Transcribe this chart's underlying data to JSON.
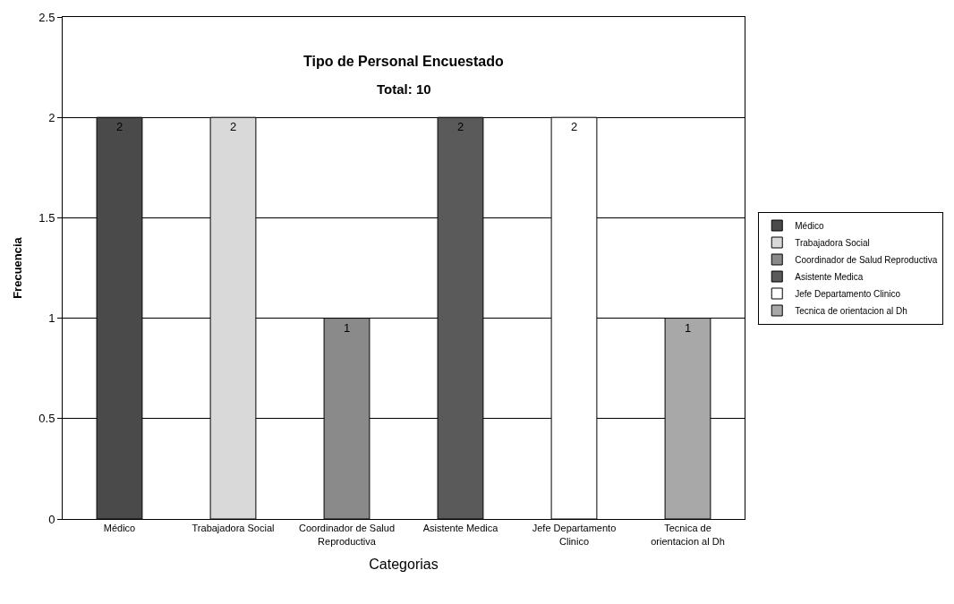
{
  "chart_data": {
    "type": "bar",
    "title": "Tipo de Personal Encuestado",
    "subtitle": "Total: 10",
    "xlabel": "Categorias",
    "ylabel": "Frecuencia",
    "categories": [
      "Médico",
      "Trabajadora Social",
      "Coordinador de Salud Reproductiva",
      "Asistente Medica",
      "Jefe Departamento Clinico",
      "Tecnica de orientacion al Dh"
    ],
    "series": [
      {
        "name": "Médico",
        "color": "#4a4a4a",
        "values": [
          2,
          null,
          null,
          null,
          null,
          null
        ]
      },
      {
        "name": "Trabajadora Social",
        "color": "#d9d9d9",
        "values": [
          null,
          2,
          null,
          null,
          null,
          null
        ]
      },
      {
        "name": "Coordinador de Salud Reproductiva",
        "color": "#8a8a8a",
        "values": [
          null,
          null,
          1,
          null,
          null,
          null
        ]
      },
      {
        "name": "Asistente Medica",
        "color": "#5a5a5a",
        "values": [
          null,
          null,
          null,
          2,
          null,
          null
        ]
      },
      {
        "name": "Jefe Departamento Clinico",
        "color": "#ffffff",
        "values": [
          null,
          null,
          null,
          null,
          2,
          null
        ]
      },
      {
        "name": "Tecnica de orientacion al Dh",
        "color": "#a8a8a8",
        "values": [
          null,
          null,
          null,
          null,
          null,
          1
        ]
      }
    ],
    "ylim": [
      0,
      2.5
    ],
    "yticks": [
      0,
      0.5,
      1,
      1.5,
      2,
      2.5
    ],
    "grid": "y",
    "legend": "right",
    "data_labels": true
  }
}
